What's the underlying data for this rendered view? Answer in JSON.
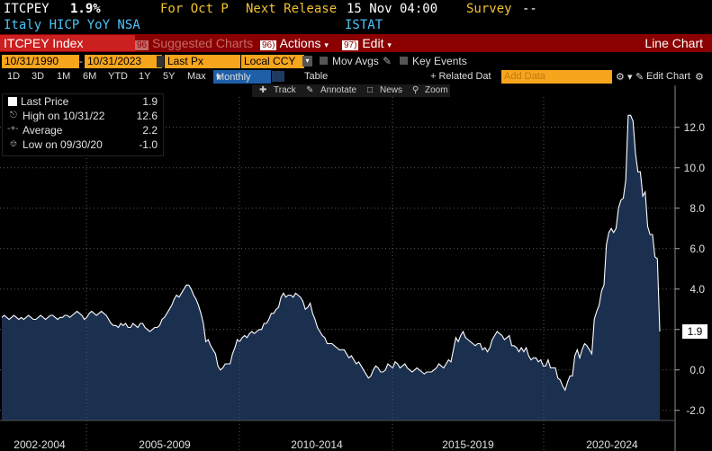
{
  "header": {
    "ticker": "ITCPEY",
    "last_value": "1.9%",
    "period": "For Oct P",
    "next_release_label": "Next Release",
    "next_release_value": "15 Nov 04:00",
    "survey_label": "Survey",
    "survey_value": "--",
    "description": "Italy HICP YoY NSA",
    "source": "ISTAT"
  },
  "toolbar": {
    "security": "ITCPEY Index",
    "suggested_num": "96",
    "suggested": "Suggested Charts",
    "actions_num": "96)",
    "actions": "Actions",
    "edit_num": "97)",
    "edit": "Edit",
    "chart_type": "Line Chart"
  },
  "controls": {
    "start_date": "10/31/1990",
    "end_date": "10/31/2023",
    "field": "Last Px",
    "currency": "Local CCY",
    "mov_avgs": "Mov Avgs",
    "key_events": "Key Events"
  },
  "periods": {
    "items": [
      "1D",
      "3D",
      "1M",
      "6M",
      "YTD",
      "1Y",
      "5Y",
      "Max"
    ],
    "frequency": "Monthly",
    "table": "Table",
    "related": "+ Related Dat",
    "add_data_placeholder": "Add Data",
    "edit_chart": "Edit Chart"
  },
  "tools": {
    "track": "Track",
    "annotate": "Annotate",
    "news": "News",
    "zoom": "Zoom"
  },
  "legend": {
    "last_price_label": "Last Price",
    "last_price_value": "1.9",
    "high_label": "High on 10/31/22",
    "high_value": "12.6",
    "average_label": "Average",
    "average_value": "2.2",
    "low_label": "Low on 09/30/20",
    "low_value": "-1.0"
  },
  "colors": {
    "accent_orange": "#f6a51c",
    "header_yellow": "#f2c12e",
    "header_cyan": "#4fc3f7",
    "toolbar_red": "#8b0000",
    "area_fill": "#1b2f4f",
    "line": "#ffffff"
  },
  "chart_data": {
    "type": "area",
    "x_start": "2001-01",
    "frequency": "monthly",
    "values": [
      2.6,
      2.7,
      2.6,
      2.5,
      2.6,
      2.7,
      2.6,
      2.5,
      2.6,
      2.5,
      2.6,
      2.7,
      2.6,
      2.5,
      2.5,
      2.6,
      2.7,
      2.6,
      2.5,
      2.6,
      2.7,
      2.7,
      2.6,
      2.5,
      2.6,
      2.6,
      2.7,
      2.7,
      2.6,
      2.7,
      2.8,
      2.9,
      2.8,
      2.7,
      2.5,
      2.6,
      2.8,
      2.9,
      2.8,
      2.7,
      2.8,
      2.9,
      2.8,
      2.7,
      2.5,
      2.3,
      2.2,
      2.2,
      2.1,
      2.3,
      2.2,
      2.3,
      2.1,
      2.1,
      2.3,
      2.2,
      2.1,
      2.3,
      2.3,
      2.1,
      2.0,
      1.9,
      2.0,
      2.1,
      2.1,
      2.2,
      2.5,
      2.6,
      2.8,
      3.0,
      3.2,
      3.5,
      3.7,
      3.6,
      3.8,
      4.0,
      4.2,
      4.2,
      4.0,
      3.7,
      3.5,
      3.2,
      2.8,
      2.3,
      1.4,
      1.5,
      1.2,
      1.0,
      0.8,
      0.2,
      0.0,
      0.1,
      0.3,
      0.3,
      0.3,
      0.8,
      1.1,
      1.5,
      1.4,
      1.6,
      1.7,
      1.6,
      1.8,
      1.9,
      1.8,
      1.9,
      2.0,
      2.0,
      2.3,
      2.3,
      2.5,
      2.8,
      2.8,
      3.0,
      3.1,
      3.6,
      3.8,
      3.6,
      3.7,
      3.7,
      3.6,
      3.8,
      3.7,
      3.6,
      3.4,
      3.0,
      3.1,
      3.3,
      2.8,
      2.5,
      2.1,
      1.9,
      1.7,
      1.6,
      1.3,
      1.3,
      1.3,
      1.2,
      1.1,
      1.0,
      1.0,
      1.0,
      0.8,
      0.6,
      0.7,
      0.5,
      0.3,
      0.4,
      0.2,
      0.0,
      -0.2,
      -0.4,
      -0.3,
      0.0,
      0.2,
      0.1,
      -0.1,
      -0.1,
      0.0,
      0.3,
      0.2,
      0.1,
      0.4,
      0.3,
      0.1,
      0.2,
      0.3,
      0.1,
      0.0,
      -0.1,
      0.0,
      0.1,
      0.0,
      -0.1,
      -0.2,
      -0.1,
      -0.1,
      -0.1,
      0.0,
      0.1,
      0.3,
      0.2,
      0.1,
      0.3,
      0.5,
      0.4,
      1.0,
      1.6,
      1.4,
      1.7,
      1.9,
      1.6,
      1.5,
      1.4,
      1.3,
      1.2,
      1.3,
      1.3,
      1.0,
      1.1,
      0.9,
      1.1,
      1.5,
      1.7,
      1.9,
      1.8,
      1.7,
      1.5,
      1.6,
      1.7,
      1.2,
      1.2,
      1.1,
      0.9,
      1.1,
      0.9,
      1.1,
      0.7,
      0.5,
      0.6,
      0.6,
      0.4,
      0.5,
      0.2,
      0.2,
      0.5,
      0.1,
      0.1,
      0.1,
      -0.4,
      -0.5,
      -0.8,
      -1.0,
      -0.6,
      -0.3,
      -0.3,
      0.7,
      1.0,
      0.6,
      1.0,
      1.3,
      1.2,
      1.0,
      0.8,
      2.5,
      2.9,
      3.2,
      3.9,
      4.2,
      6.2,
      6.8,
      7.0,
      6.8,
      7.0,
      8.0,
      8.4,
      8.5,
      9.4,
      12.6,
      12.6,
      12.3,
      10.7,
      9.8,
      9.8,
      8.6,
      8.8,
      7.1,
      6.7,
      6.7,
      5.6,
      5.5,
      1.9
    ],
    "last_value": 1.9,
    "ylim": [
      -2.5,
      13.5
    ],
    "yticks": [
      -2.0,
      0.0,
      2.0,
      4.0,
      6.0,
      8.0,
      10.0,
      12.0
    ],
    "ytick_labels": [
      "-2.0",
      "0.0",
      "2.0",
      "4.0",
      "6.0",
      "8.0",
      "10.0",
      "12.0"
    ],
    "x_period_labels": [
      "2002-2004",
      "2005-2009",
      "2010-2014",
      "2015-2019",
      "2020-2024"
    ],
    "grid": true,
    "legend": "top-left"
  }
}
